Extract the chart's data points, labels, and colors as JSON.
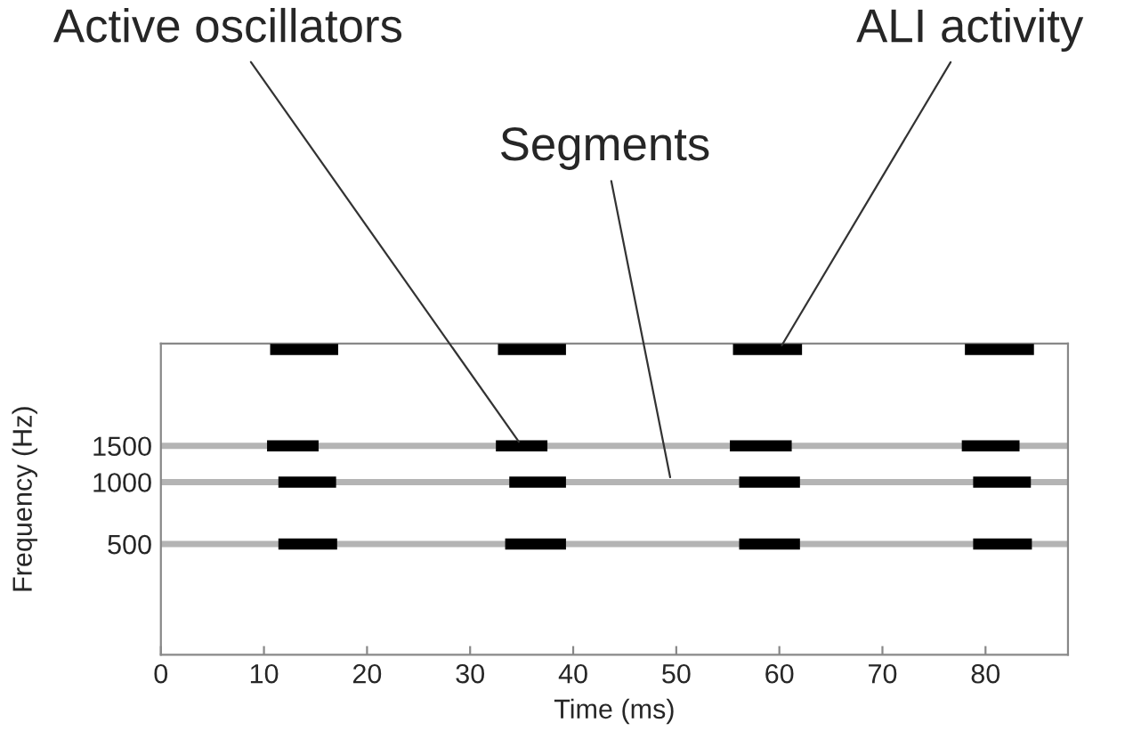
{
  "chart_data": {
    "type": "line",
    "xlabel": "Time (ms)",
    "ylabel": "Frequency (Hz)",
    "log": "y",
    "xlim": [
      0,
      88
    ],
    "xticks": [
      0,
      10,
      20,
      30,
      40,
      50,
      60,
      70,
      80
    ],
    "ylim": [
      145,
      4700
    ],
    "yticks": [
      500,
      1000,
      1500
    ],
    "grid": false,
    "marker": "none",
    "line_style": "solid",
    "ref_lines": [
      {
        "axis": "y",
        "value": 1500,
        "label": null,
        "color": "#b4b4b4"
      },
      {
        "axis": "y",
        "value": 1000,
        "label": null,
        "color": "#b4b4b4"
      },
      {
        "axis": "y",
        "value": 500,
        "label": null,
        "color": "#b4b4b4"
      }
    ],
    "series": [
      {
        "color": "#000000",
        "x": [
          10.6,
          17.2,
          25,
          32.7,
          39.3,
          47,
          55.5,
          62.2,
          70,
          78.0,
          84.7
        ],
        "values": [
          4400,
          4400,
          null,
          4400,
          4400,
          null,
          4400,
          4400,
          null,
          4400,
          4400
        ]
      },
      {
        "color": "#000000",
        "x": [
          10.3,
          15.3,
          24,
          32.5,
          37.5,
          46,
          55.2,
          61.2,
          70,
          77.7,
          83.3
        ],
        "values": [
          1500,
          1500,
          null,
          1500,
          1500,
          null,
          1500,
          1500,
          null,
          1500,
          1500
        ]
      },
      {
        "color": "#000000",
        "x": [
          11.4,
          17.0,
          25,
          33.8,
          39.3,
          47,
          56.1,
          62.0,
          70,
          78.8,
          84.4
        ],
        "values": [
          1000,
          1000,
          null,
          1000,
          1000,
          null,
          1000,
          1000,
          null,
          1000,
          1000
        ]
      },
      {
        "color": "#000000",
        "x": [
          11.4,
          17.1,
          25,
          33.4,
          39.3,
          47,
          56.1,
          62.0,
          70,
          78.8,
          84.5
        ],
        "values": [
          500,
          500,
          null,
          500,
          500,
          null,
          500,
          500,
          null,
          500,
          500
        ]
      }
    ],
    "annotations": [
      {
        "text": "Active oscillators",
        "x": 35,
        "y": 1500
      },
      {
        "text": "Segments",
        "x": 49.5,
        "y": 1000
      },
      {
        "text": "ALI activity",
        "x": 60,
        "y": 4400
      }
    ]
  }
}
